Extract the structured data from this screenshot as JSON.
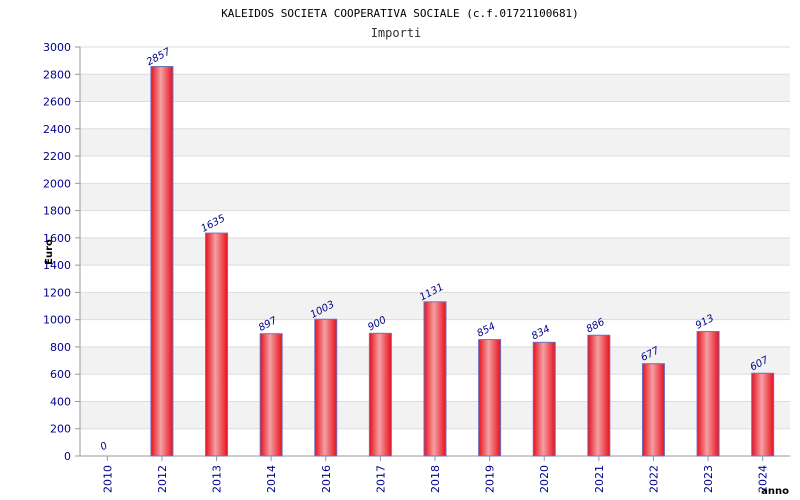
{
  "chart_data": {
    "type": "bar",
    "title": "KALEIDOS SOCIETA COOPERATIVA SOCIALE (c.f.01721100681)",
    "subtitle": "Importi",
    "xlabel": "anno",
    "ylabel": "Euro",
    "categories": [
      "2010",
      "2012",
      "2013",
      "2014",
      "2016",
      "2017",
      "2018",
      "2019",
      "2020",
      "2021",
      "2022",
      "2023",
      "2024"
    ],
    "values": [
      0,
      2857,
      1635,
      897,
      1003,
      900,
      1131,
      854,
      834,
      886,
      677,
      913,
      607
    ],
    "data_labels": [
      "0",
      "2857",
      "1635",
      "897",
      "1003",
      "900",
      "1131",
      "854",
      "834",
      "886",
      "677",
      "913",
      "607"
    ],
    "ylim": [
      0,
      3000
    ],
    "yticks": [
      "0",
      "200",
      "400",
      "600",
      "800",
      "1000",
      "1200",
      "1400",
      "1600",
      "1800",
      "2000",
      "2200",
      "2400",
      "2600",
      "2800",
      "3000"
    ],
    "grid": true,
    "bar_color": "#e8101a",
    "bar_highlight": "#f4a0a4",
    "bar_border": "#7070c0",
    "tick_color": "#00008b",
    "band_color": "#f2f2f2"
  }
}
